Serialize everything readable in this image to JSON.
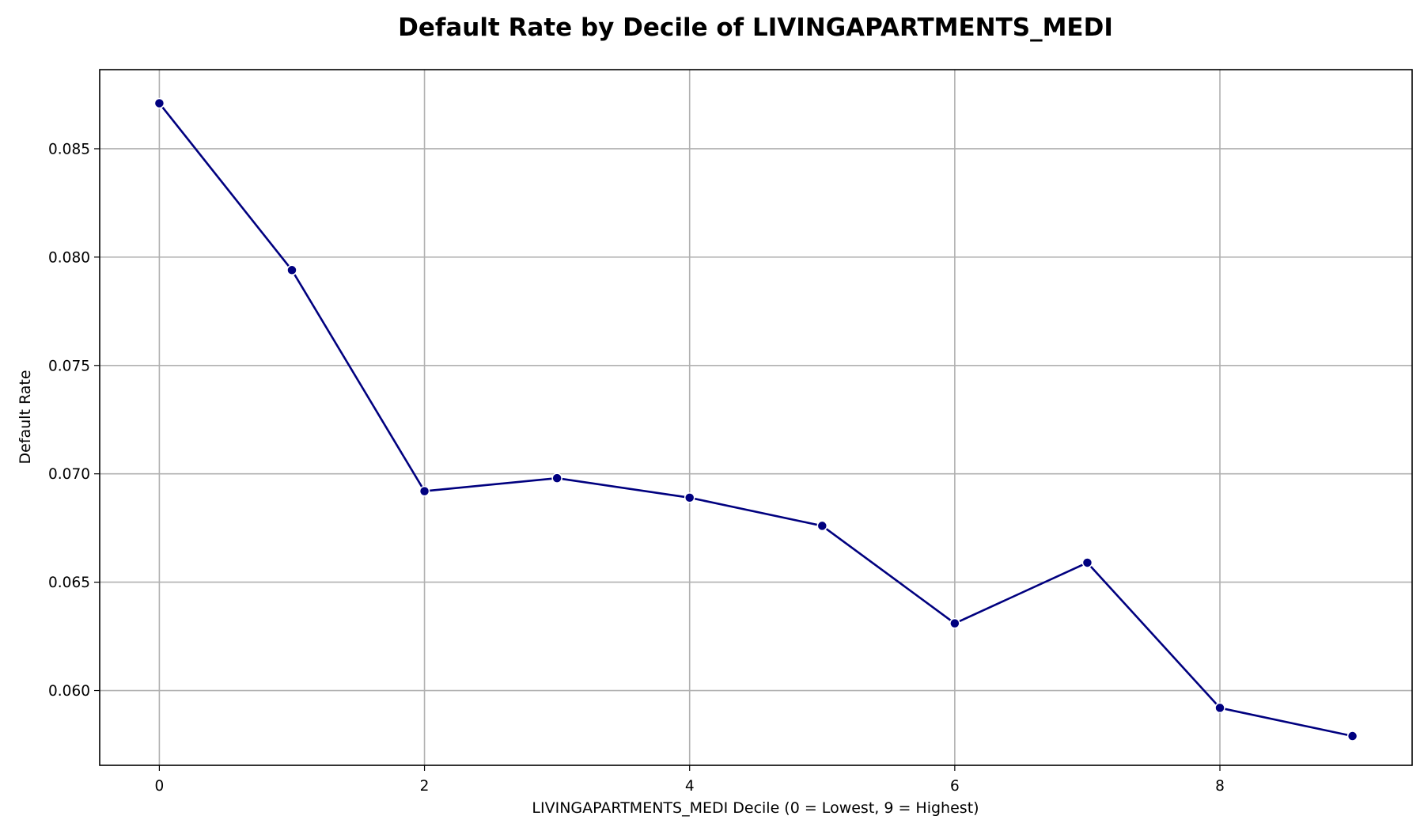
{
  "chart_data": {
    "type": "line",
    "title": "Default Rate by Decile of LIVINGAPARTMENTS_MEDI",
    "xlabel": "LIVINGAPARTMENTS_MEDI Decile (0 = Lowest, 9 = Highest)",
    "ylabel": "Default Rate",
    "x": [
      0,
      1,
      2,
      3,
      4,
      5,
      6,
      7,
      8,
      9
    ],
    "values": [
      0.0871,
      0.0794,
      0.0692,
      0.0698,
      0.0689,
      0.0676,
      0.0631,
      0.0659,
      0.0592,
      0.0579
    ],
    "xlim": [
      -0.45,
      9.45
    ],
    "ylim": [
      0.05655,
      0.08865
    ],
    "xticks": [
      0,
      2,
      4,
      6,
      8
    ],
    "xtick_labels": [
      "0",
      "2",
      "4",
      "6",
      "8"
    ],
    "yticks": [
      0.06,
      0.065,
      0.07,
      0.075,
      0.08,
      0.085
    ],
    "ytick_labels": [
      "0.060",
      "0.065",
      "0.070",
      "0.075",
      "0.080",
      "0.085"
    ],
    "grid": true,
    "line_color": "#00007f",
    "marker_color": "#00007f",
    "marker_edge_color": "#ffffff"
  }
}
